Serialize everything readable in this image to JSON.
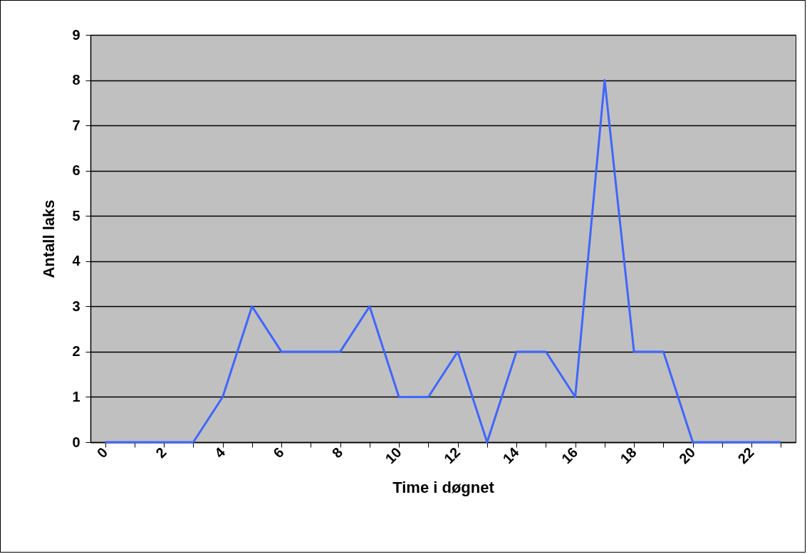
{
  "chart_data": {
    "type": "line",
    "xlabel": "Time i døgnet",
    "ylabel": "Antall laks",
    "categories": [
      "0",
      null,
      "2",
      null,
      "4",
      null,
      "6",
      null,
      "8",
      null,
      "10",
      null,
      "12",
      null,
      "14",
      null,
      "16",
      null,
      "18",
      null,
      "20",
      null,
      "22",
      null
    ],
    "series": [
      {
        "color": "#3f66ff",
        "values": [
          0,
          0,
          0,
          0,
          1,
          3,
          2,
          2,
          2,
          3,
          1,
          1,
          2,
          0,
          2,
          2,
          1,
          8,
          2,
          2,
          0,
          0,
          0,
          0
        ]
      }
    ],
    "ylim": [
      0,
      9
    ],
    "yticks": [
      0,
      1,
      2,
      3,
      4,
      5,
      6,
      7,
      8,
      9
    ],
    "grid": "y",
    "marker": "none",
    "line_style": "solid"
  }
}
